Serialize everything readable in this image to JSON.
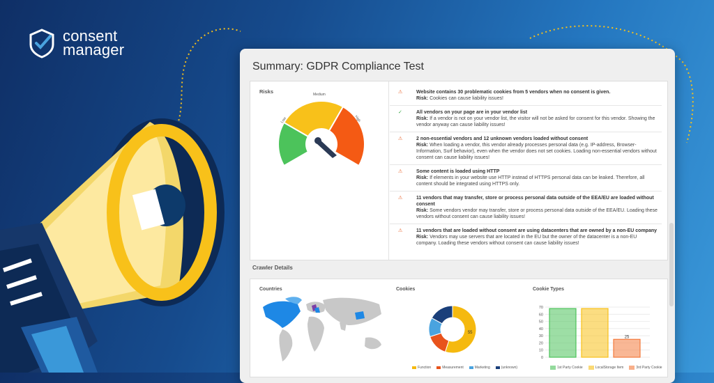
{
  "brand": {
    "line1": "consent",
    "line2": "manager",
    "mark": "shield-check-icon"
  },
  "panel": {
    "title": "Summary: GDPR Compliance Test"
  },
  "risks": {
    "label": "Risks",
    "gauge": {
      "low": "Low",
      "medium": "Medium",
      "high": "High",
      "colors": {
        "low": "#4cc35b",
        "medium": "#f8c11a",
        "high": "#f45a14"
      }
    },
    "items": [
      {
        "status": "warn",
        "title": "Website contains 30 problematic cookies from 5 vendors when no consent is given.",
        "risk_label": "Risk:",
        "risk_text": "Cookies can cause liability issues!"
      },
      {
        "status": "ok",
        "title": "All vendors on your page are in your vendor list",
        "risk_label": "Risk:",
        "risk_text": "If a vendor is not on your vendor list, the visitor will not be asked for consent for this vendor. Showing the vendor anyway can cause liability issues!"
      },
      {
        "status": "warn",
        "title": "2 non-essential vendors and 12 unknown vendors loaded without consent",
        "risk_label": "Risk:",
        "risk_text": "When loading a vendor, this vendor already processes personal data (e.g. IP-address, Browser-Information, Surf behavior), even when the vendor does not set cookies. Loading non-essential vendors without consent can cause liability issues!"
      },
      {
        "status": "warn",
        "title": "Some content is loaded using HTTP",
        "risk_label": "Risk:",
        "risk_text": "If elements in your website use HTTP instead of HTTPS personal data can be leaked. Therefore, all content should be integrated using HTTPS only."
      },
      {
        "status": "warn",
        "title": "11 vendors that may transfer, store or process personal data outside of the EEA/EU are loaded without consent",
        "risk_label": "Risk:",
        "risk_text": "Some vendors vendor may transfer, store or process personal data outside of the EEA/EU. Loading these vendors without consent can cause liability issues!"
      },
      {
        "status": "warn",
        "title": "11 vendors that are loaded without consent are using datacenters that are owned by a non-EU company",
        "risk_label": "Risk:",
        "risk_text": "Vendors may use servers that are located in the EU but the owner of the datacenter is a non-EU company. Loading these vendors without consent can cause liability issues!"
      }
    ]
  },
  "crawler": {
    "title": "Crawler Details",
    "countries_label": "Countries",
    "cookies_label": "Cookies",
    "cookie_types_label": "Cookie Types"
  },
  "chart_data": [
    {
      "type": "pie",
      "title": "Cookies",
      "categories": [
        "Function",
        "Measurement",
        "Marketing",
        "(unknown)"
      ],
      "values": [
        55,
        15,
        13,
        17
      ],
      "data_labels": [
        "55",
        "",
        "",
        ""
      ],
      "colors": [
        "#f5b90f",
        "#e8531c",
        "#4aa3df",
        "#1a3f7a"
      ],
      "legend": "bottom"
    },
    {
      "type": "bar",
      "title": "Cookie Types",
      "categories": [
        "1st Party Cookie",
        "LocalStorage Item",
        "3rd Party Cookie"
      ],
      "values": [
        68,
        68,
        25
      ],
      "data_labels": [
        "",
        "",
        "25"
      ],
      "colors": [
        "#4cc35b",
        "#f8c11a",
        "#f47b3e"
      ],
      "y_ticks": [
        "0",
        "10",
        "20",
        "30",
        "40",
        "50",
        "60",
        "70"
      ],
      "ylim": [
        0,
        70
      ],
      "grid": true,
      "legend": "bottom"
    }
  ]
}
